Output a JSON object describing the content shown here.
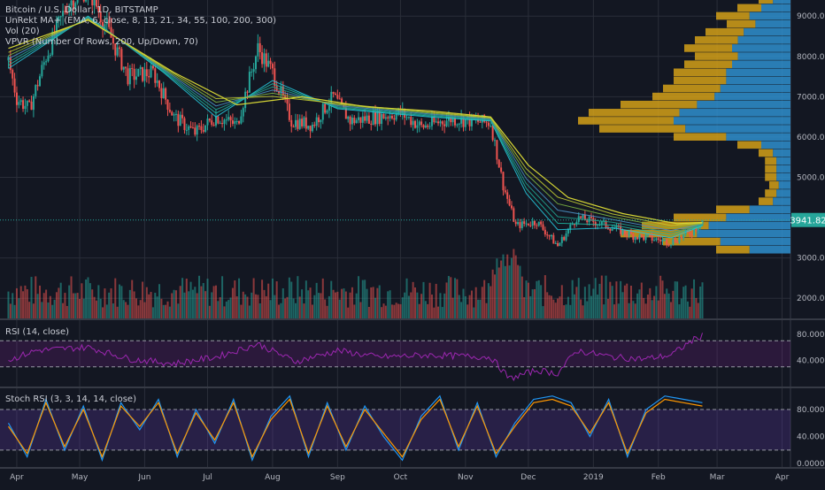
{
  "legend": {
    "symbol": "Bitcoin / U.S. Dollar, 1D, BITSTAMP",
    "ma": "UnRekt MA+ (EMA, 6, close, 8, 13, 21, 34, 55, 100, 200, 300)",
    "vol": "Vol (20)",
    "vpvr": "VPVR (Number Of Rows, 200, Up/Down, 70)"
  },
  "panes": {
    "rsi_label": "RSI (14, close)",
    "stoch_label": "Stoch RSI (3, 3, 14, 14, close)"
  },
  "colors": {
    "background": "#131722",
    "grid": "#2a2e39",
    "candle_up": "#26a69a",
    "candle_down": "#ef5350",
    "ema_fast": "#26c6da",
    "ema_slow": "#d4d435",
    "vpvr_up": "#2f8fce",
    "vpvr_down": "#d4a017",
    "rsi_line": "#9c27b0",
    "stoch_k": "#2196f3",
    "stoch_d": "#ff9800",
    "last_price": "#26a69a"
  },
  "chart_data": [
    {
      "type": "candlestick",
      "title": "Bitcoin / U.S. Dollar, 1D, BITSTAMP",
      "price_axis_ticks": [
        "9000.00",
        "8000.00",
        "7000.00",
        "6000.00",
        "5000.00",
        "3000.00",
        "2000.00"
      ],
      "last_price_label": "3941.82",
      "ylim": [
        1500,
        9400
      ],
      "time_ticks": [
        "Apr",
        "May",
        "Jun",
        "Jul",
        "Aug",
        "Sep",
        "Oct",
        "Nov",
        "Dec",
        "2019",
        "Feb",
        "Mar",
        "Apr"
      ],
      "price_path": [
        [
          "2018-03-28",
          7900
        ],
        [
          "2018-04-01",
          6950
        ],
        [
          "2018-04-07",
          6700
        ],
        [
          "2018-04-15",
          8000
        ],
        [
          "2018-04-25",
          9300
        ],
        [
          "2018-05-05",
          9700
        ],
        [
          "2018-05-14",
          8700
        ],
        [
          "2018-05-24",
          7500
        ],
        [
          "2018-06-05",
          7600
        ],
        [
          "2018-06-15",
          6500
        ],
        [
          "2018-06-25",
          6100
        ],
        [
          "2018-07-05",
          6500
        ],
        [
          "2018-07-15",
          6300
        ],
        [
          "2018-07-25",
          8200
        ],
        [
          "2018-08-01",
          7600
        ],
        [
          "2018-08-10",
          6400
        ],
        [
          "2018-08-20",
          6300
        ],
        [
          "2018-08-30",
          7000
        ],
        [
          "2018-09-07",
          6400
        ],
        [
          "2018-09-20",
          6500
        ],
        [
          "2018-10-01",
          6600
        ],
        [
          "2018-10-11",
          6250
        ],
        [
          "2018-10-25",
          6450
        ],
        [
          "2018-11-13",
          6350
        ],
        [
          "2018-11-19",
          4800
        ],
        [
          "2018-11-25",
          3800
        ],
        [
          "2018-12-05",
          3900
        ],
        [
          "2018-12-15",
          3300
        ],
        [
          "2018-12-24",
          4000
        ],
        [
          "2019-01-05",
          3850
        ],
        [
          "2019-01-20",
          3550
        ],
        [
          "2019-02-07",
          3400
        ],
        [
          "2019-02-17",
          3650
        ],
        [
          "2019-02-22",
          3941
        ]
      ],
      "ema_short_path": [
        [
          "2018-03-28",
          7700
        ],
        [
          "2018-05-05",
          9000
        ],
        [
          "2018-06-10",
          7600
        ],
        [
          "2018-07-05",
          6500
        ],
        [
          "2018-08-01",
          7400
        ],
        [
          "2018-09-01",
          6700
        ],
        [
          "2018-10-15",
          6500
        ],
        [
          "2018-11-13",
          6400
        ],
        [
          "2018-11-30",
          4600
        ],
        [
          "2018-12-15",
          3700
        ],
        [
          "2019-01-10",
          3750
        ],
        [
          "2019-02-07",
          3500
        ],
        [
          "2019-02-22",
          3800
        ]
      ],
      "ema_long_path": [
        [
          "2018-03-28",
          8200
        ],
        [
          "2018-05-05",
          8900
        ],
        [
          "2018-06-15",
          7600
        ],
        [
          "2018-07-15",
          6800
        ],
        [
          "2018-08-15",
          7000
        ],
        [
          "2018-09-15",
          6750
        ],
        [
          "2018-10-15",
          6650
        ],
        [
          "2018-11-13",
          6500
        ],
        [
          "2018-12-01",
          5300
        ],
        [
          "2018-12-20",
          4500
        ],
        [
          "2019-01-15",
          4100
        ],
        [
          "2019-02-10",
          3850
        ],
        [
          "2019-02-22",
          3880
        ]
      ]
    },
    {
      "type": "histogram",
      "name": "Volume profile (VPVR)",
      "rows": [
        [
          9400,
          0.15
        ],
        [
          9200,
          0.25
        ],
        [
          9000,
          0.35
        ],
        [
          8800,
          0.3
        ],
        [
          8600,
          0.4
        ],
        [
          8400,
          0.45
        ],
        [
          8200,
          0.5
        ],
        [
          8000,
          0.45
        ],
        [
          7800,
          0.5
        ],
        [
          7600,
          0.55
        ],
        [
          7400,
          0.55
        ],
        [
          7200,
          0.6
        ],
        [
          7000,
          0.65
        ],
        [
          6800,
          0.8
        ],
        [
          6600,
          0.95
        ],
        [
          6400,
          1.0
        ],
        [
          6200,
          0.9
        ],
        [
          6000,
          0.55
        ],
        [
          5800,
          0.25
        ],
        [
          5600,
          0.15
        ],
        [
          5400,
          0.12
        ],
        [
          5200,
          0.12
        ],
        [
          5000,
          0.12
        ],
        [
          4800,
          0.1
        ],
        [
          4600,
          0.12
        ],
        [
          4400,
          0.15
        ],
        [
          4200,
          0.35
        ],
        [
          4000,
          0.55
        ],
        [
          3800,
          0.7
        ],
        [
          3600,
          0.8
        ],
        [
          3400,
          0.6
        ],
        [
          3200,
          0.35
        ]
      ]
    },
    {
      "type": "bar",
      "name": "Vol (20)",
      "ytick": "2000.00"
    },
    {
      "type": "line",
      "title": "RSI (14, close)",
      "yticks": [
        "80.0000",
        "40.0000"
      ],
      "levels": [
        70,
        30
      ],
      "ylim": [
        0,
        100
      ],
      "x": [
        "2018-03-28",
        "2018-04-10",
        "2018-05-05",
        "2018-05-25",
        "2018-06-15",
        "2018-07-05",
        "2018-07-25",
        "2018-08-12",
        "2018-09-01",
        "2018-09-20",
        "2018-10-15",
        "2018-11-13",
        "2018-11-22",
        "2018-12-05",
        "2018-12-15",
        "2018-12-24",
        "2019-01-10",
        "2019-01-25",
        "2019-02-07",
        "2019-02-17",
        "2019-02-22"
      ],
      "y": [
        40,
        55,
        60,
        42,
        35,
        45,
        65,
        38,
        55,
        45,
        48,
        45,
        12,
        25,
        20,
        55,
        45,
        42,
        48,
        70,
        78
      ]
    },
    {
      "type": "line",
      "title": "Stoch RSI (3, 3, 14, 14, close)",
      "yticks": [
        "80.0000",
        "40.0000",
        "0.0000"
      ],
      "levels": [
        80,
        20
      ],
      "ylim": [
        -5,
        110
      ],
      "series": [
        {
          "values": [
            60,
            10,
            95,
            20,
            85,
            5,
            90,
            50,
            95,
            10,
            80,
            30,
            95,
            5,
            70,
            100,
            10,
            90,
            20,
            85,
            40,
            5,
            70,
            100,
            20,
            90,
            10,
            60,
            95,
            100,
            90,
            40,
            95,
            10,
            80,
            100,
            95,
            90
          ]
        },
        {
          "values": [
            55,
            15,
            90,
            25,
            80,
            10,
            85,
            55,
            90,
            15,
            75,
            35,
            90,
            10,
            65,
            95,
            15,
            85,
            25,
            80,
            45,
            10,
            65,
            95,
            25,
            85,
            15,
            55,
            90,
            95,
            85,
            45,
            90,
            15,
            75,
            95,
            90,
            85
          ]
        }
      ]
    }
  ]
}
